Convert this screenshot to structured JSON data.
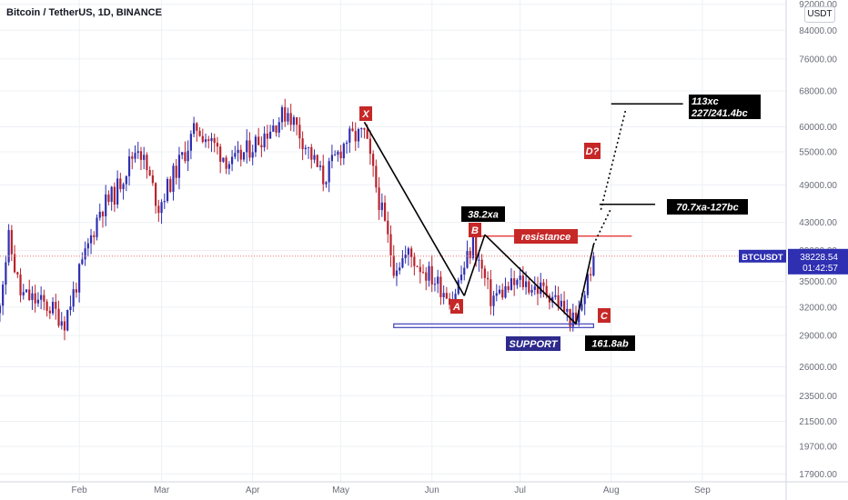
{
  "header": {
    "title": "Bitcoin / TetherUS, 1D, BINANCE",
    "currency_button": "USDT"
  },
  "colors": {
    "up": "#2e2fb1",
    "down": "#b8232d",
    "line": "#000000",
    "resistance": "#e53935",
    "support": "#3f3fb8",
    "price_line": "#e57373",
    "label_red": "#c62828",
    "label_black": "#000000",
    "label_navy": "#2d2a8c"
  },
  "price_tag": {
    "symbol": "BTCUSDT",
    "price": "38228.54",
    "countdown": "01:42:57"
  },
  "chart_data": {
    "type": "candlestick",
    "title": "Bitcoin / TetherUS, 1D, BINANCE",
    "y_scale": "log",
    "ylim": [
      17400,
      92000
    ],
    "y_ticks": [
      92000,
      84000,
      76000,
      68000,
      60000,
      55000,
      49000,
      43000,
      39000,
      35000,
      32000,
      29000,
      26000,
      23500,
      21500,
      19700,
      17900
    ],
    "x_ticks": [
      {
        "label": "Feb",
        "date": "2021-02-01"
      },
      {
        "label": "Mar",
        "date": "2021-03-01"
      },
      {
        "label": "Apr",
        "date": "2021-04-01"
      },
      {
        "label": "May",
        "date": "2021-05-01"
      },
      {
        "label": "Jun",
        "date": "2021-06-01"
      },
      {
        "label": "Jul",
        "date": "2021-07-01"
      },
      {
        "label": "Aug",
        "date": "2021-08-01"
      },
      {
        "label": "Sep",
        "date": "2021-09-01"
      }
    ],
    "last_price": 38228.54,
    "anchors": [
      {
        "date": "2021-01-04",
        "price": 31000
      },
      {
        "date": "2021-01-08",
        "price": 40500
      },
      {
        "date": "2021-01-12",
        "price": 33500
      },
      {
        "date": "2021-01-22",
        "price": 32000
      },
      {
        "date": "2021-01-27",
        "price": 30500
      },
      {
        "date": "2021-02-08",
        "price": 45000
      },
      {
        "date": "2021-02-13",
        "price": 47500
      },
      {
        "date": "2021-02-21",
        "price": 56500
      },
      {
        "date": "2021-02-28",
        "price": 45500
      },
      {
        "date": "2021-03-13",
        "price": 60000
      },
      {
        "date": "2021-03-25",
        "price": 52500
      },
      {
        "date": "2021-04-13",
        "price": 63500
      },
      {
        "date": "2021-04-25",
        "price": 50000
      },
      {
        "date": "2021-05-03",
        "price": 57500
      },
      {
        "date": "2021-05-09",
        "price": 58500
      },
      {
        "date": "2021-05-19",
        "price": 37000
      },
      {
        "date": "2021-05-24",
        "price": 38500
      },
      {
        "date": "2021-06-08",
        "price": 33000
      },
      {
        "date": "2021-06-15",
        "price": 40000
      },
      {
        "date": "2021-06-21",
        "price": 33000
      },
      {
        "date": "2021-07-01",
        "price": 35000
      },
      {
        "date": "2021-07-12",
        "price": 33500
      },
      {
        "date": "2021-07-20",
        "price": 30000
      },
      {
        "date": "2021-07-26",
        "price": 38228
      }
    ],
    "harmonic_points": [
      {
        "label": "X",
        "date": "2021-05-09",
        "price": 61000
      },
      {
        "label": "A",
        "date": "2021-06-12",
        "price": 33300
      },
      {
        "label": "B",
        "date": "2021-06-19",
        "price": 41200
      },
      {
        "label": "C",
        "date": "2021-07-20",
        "price": 30200
      },
      {
        "label": "D?",
        "date": "2021-07-26",
        "price": 39800
      }
    ],
    "projections": [
      {
        "label": "70.7xa-127bc",
        "date_start": "2021-07-28",
        "date_end": "2021-08-11",
        "price": 45800
      },
      {
        "label": "113xc 227/241.4bc",
        "date_start": "2021-08-01",
        "date_end": "2021-08-31",
        "price": 65000
      }
    ],
    "levels": [
      {
        "label": "resistance",
        "price": 41000,
        "date_start": "2021-06-16",
        "date_end": "2021-08-08"
      },
      {
        "label": "SUPPORT",
        "price": 30000,
        "date_start": "2021-05-19",
        "date_end": "2021-07-26"
      }
    ],
    "annotations": [
      "X",
      "A",
      "B",
      "C",
      "D?",
      "38.2xa",
      "161.8ab",
      "resistance",
      "SUPPORT",
      "70.7xa-127bc",
      "113xc",
      "227/241.4bc"
    ]
  }
}
